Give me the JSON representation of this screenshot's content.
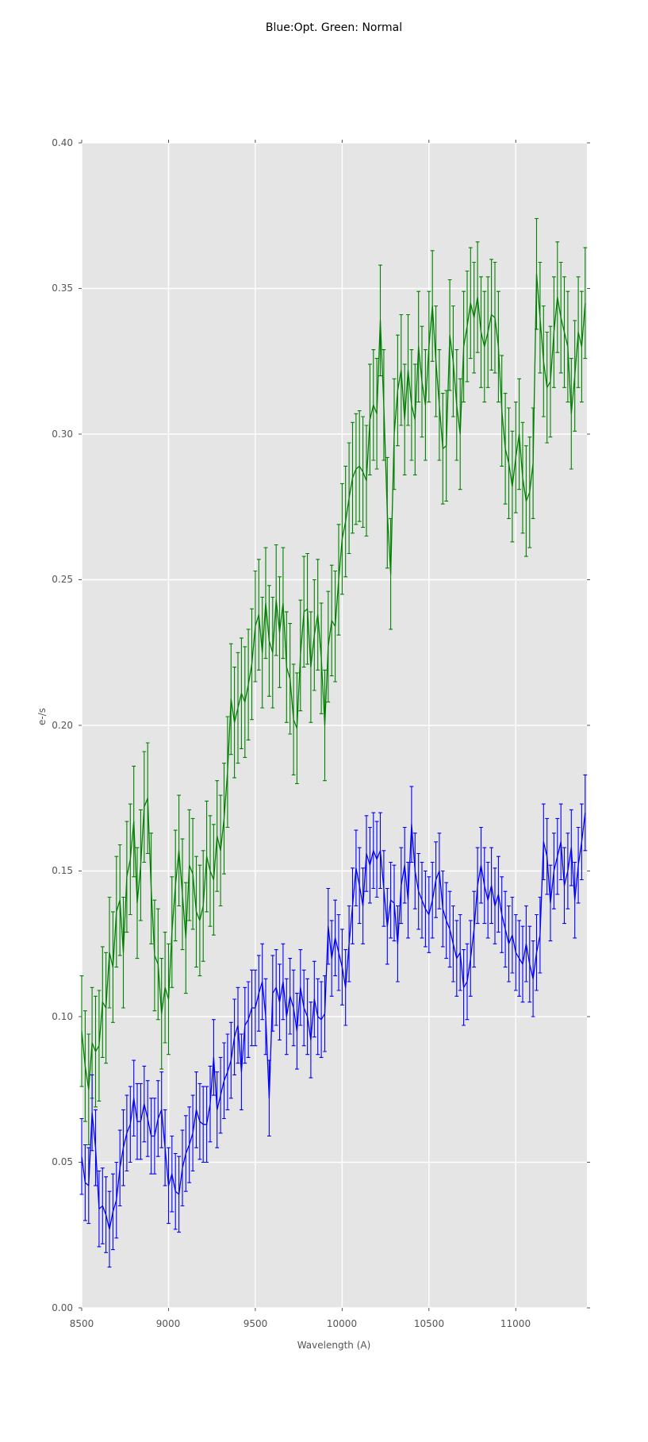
{
  "title": "Blue:Opt. Green: Normal",
  "chart_data": {
    "type": "line",
    "title": "Blue:Opt. Green: Normal",
    "xlabel": "Wavelength (A)",
    "ylabel": "e-/s",
    "xlim": [
      8500,
      11410
    ],
    "ylim": [
      0.0,
      0.4
    ],
    "grid": true,
    "legend": "none (series identified in title)",
    "x_ticks": [
      8500,
      9000,
      9500,
      10000,
      10500,
      11000
    ],
    "x_tick_labels": [
      "8500",
      "9000",
      "9500",
      "10000",
      "10500",
      "11000"
    ],
    "y_ticks": [
      0.0,
      0.05,
      0.1,
      0.15,
      0.2,
      0.25,
      0.3,
      0.35,
      0.4
    ],
    "y_tick_labels": [
      "0.00",
      "0.05",
      "0.10",
      "0.15",
      "0.20",
      "0.25",
      "0.30",
      "0.35",
      "0.40"
    ],
    "styles": {
      "plot_background": "#e5e5e5",
      "grid_color": "#ffffff",
      "tick_color": "#555555",
      "tick_label_color": "#555555",
      "title_color": "#000000"
    },
    "x": [
      8500,
      8520,
      8540,
      8560,
      8580,
      8600,
      8620,
      8640,
      8660,
      8680,
      8700,
      8720,
      8740,
      8760,
      8780,
      8800,
      8820,
      8840,
      8860,
      8880,
      8900,
      8920,
      8940,
      8960,
      8980,
      9000,
      9020,
      9040,
      9060,
      9080,
      9100,
      9120,
      9140,
      9160,
      9180,
      9200,
      9220,
      9240,
      9260,
      9280,
      9300,
      9320,
      9340,
      9360,
      9380,
      9400,
      9420,
      9440,
      9460,
      9480,
      9500,
      9520,
      9540,
      9560,
      9580,
      9600,
      9620,
      9640,
      9660,
      9680,
      9700,
      9720,
      9740,
      9760,
      9780,
      9800,
      9820,
      9840,
      9860,
      9880,
      9900,
      9920,
      9940,
      9960,
      9980,
      10000,
      10020,
      10040,
      10060,
      10080,
      10100,
      10120,
      10140,
      10160,
      10180,
      10200,
      10220,
      10240,
      10260,
      10280,
      10300,
      10320,
      10340,
      10360,
      10380,
      10400,
      10420,
      10440,
      10460,
      10480,
      10500,
      10520,
      10540,
      10560,
      10580,
      10600,
      10620,
      10640,
      10660,
      10680,
      10700,
      10720,
      10740,
      10760,
      10780,
      10800,
      10820,
      10840,
      10860,
      10880,
      10900,
      10920,
      10940,
      10960,
      10980,
      11000,
      11020,
      11040,
      11060,
      11080,
      11100,
      11120,
      11140,
      11160,
      11180,
      11200,
      11220,
      11240,
      11260,
      11280,
      11300,
      11320,
      11340,
      11360,
      11380,
      11400
    ],
    "series": [
      {
        "name": "Normal",
        "color": "#008000",
        "error_bar": 0.019,
        "y": [
          0.095,
          0.083,
          0.075,
          0.091,
          0.088,
          0.09,
          0.105,
          0.103,
          0.122,
          0.117,
          0.136,
          0.14,
          0.122,
          0.148,
          0.154,
          0.167,
          0.139,
          0.152,
          0.172,
          0.175,
          0.144,
          0.121,
          0.118,
          0.101,
          0.11,
          0.106,
          0.129,
          0.145,
          0.157,
          0.142,
          0.127,
          0.152,
          0.149,
          0.136,
          0.133,
          0.138,
          0.155,
          0.15,
          0.147,
          0.162,
          0.157,
          0.168,
          0.184,
          0.209,
          0.201,
          0.206,
          0.211,
          0.208,
          0.214,
          0.221,
          0.234,
          0.238,
          0.225,
          0.242,
          0.229,
          0.225,
          0.243,
          0.232,
          0.242,
          0.22,
          0.216,
          0.202,
          0.199,
          0.224,
          0.239,
          0.24,
          0.22,
          0.231,
          0.238,
          0.223,
          0.2,
          0.227,
          0.236,
          0.234,
          0.25,
          0.264,
          0.27,
          0.278,
          0.285,
          0.288,
          0.289,
          0.287,
          0.284,
          0.305,
          0.31,
          0.307,
          0.339,
          0.31,
          0.273,
          0.252,
          0.3,
          0.315,
          0.322,
          0.305,
          0.322,
          0.31,
          0.305,
          0.33,
          0.318,
          0.31,
          0.33,
          0.344,
          0.325,
          0.31,
          0.295,
          0.296,
          0.334,
          0.325,
          0.31,
          0.3,
          0.33,
          0.337,
          0.345,
          0.34,
          0.347,
          0.335,
          0.33,
          0.335,
          0.341,
          0.34,
          0.33,
          0.308,
          0.295,
          0.29,
          0.282,
          0.292,
          0.3,
          0.285,
          0.277,
          0.28,
          0.29,
          0.355,
          0.34,
          0.325,
          0.316,
          0.318,
          0.335,
          0.347,
          0.34,
          0.335,
          0.33,
          0.307,
          0.32,
          0.335,
          0.33,
          0.345
        ]
      },
      {
        "name": "Opt",
        "color": "#0000ff",
        "error_bar": 0.013,
        "y": [
          0.052,
          0.043,
          0.042,
          0.067,
          0.055,
          0.034,
          0.035,
          0.032,
          0.027,
          0.033,
          0.037,
          0.048,
          0.055,
          0.06,
          0.063,
          0.072,
          0.064,
          0.064,
          0.07,
          0.065,
          0.059,
          0.059,
          0.065,
          0.068,
          0.055,
          0.042,
          0.046,
          0.04,
          0.039,
          0.048,
          0.053,
          0.056,
          0.06,
          0.068,
          0.064,
          0.063,
          0.063,
          0.07,
          0.086,
          0.068,
          0.073,
          0.078,
          0.081,
          0.085,
          0.093,
          0.097,
          0.081,
          0.097,
          0.099,
          0.103,
          0.103,
          0.108,
          0.112,
          0.1,
          0.072,
          0.108,
          0.11,
          0.105,
          0.112,
          0.1,
          0.107,
          0.103,
          0.095,
          0.11,
          0.103,
          0.1,
          0.092,
          0.106,
          0.1,
          0.099,
          0.101,
          0.131,
          0.12,
          0.127,
          0.122,
          0.117,
          0.11,
          0.125,
          0.138,
          0.151,
          0.145,
          0.138,
          0.156,
          0.152,
          0.157,
          0.154,
          0.157,
          0.144,
          0.131,
          0.14,
          0.139,
          0.125,
          0.145,
          0.152,
          0.14,
          0.166,
          0.15,
          0.143,
          0.14,
          0.137,
          0.135,
          0.14,
          0.147,
          0.15,
          0.137,
          0.133,
          0.13,
          0.125,
          0.12,
          0.122,
          0.11,
          0.112,
          0.12,
          0.13,
          0.145,
          0.152,
          0.145,
          0.14,
          0.145,
          0.138,
          0.142,
          0.135,
          0.13,
          0.125,
          0.128,
          0.122,
          0.12,
          0.118,
          0.125,
          0.118,
          0.113,
          0.122,
          0.128,
          0.16,
          0.155,
          0.139,
          0.15,
          0.155,
          0.16,
          0.145,
          0.15,
          0.158,
          0.14,
          0.152,
          0.16,
          0.17
        ]
      }
    ]
  }
}
